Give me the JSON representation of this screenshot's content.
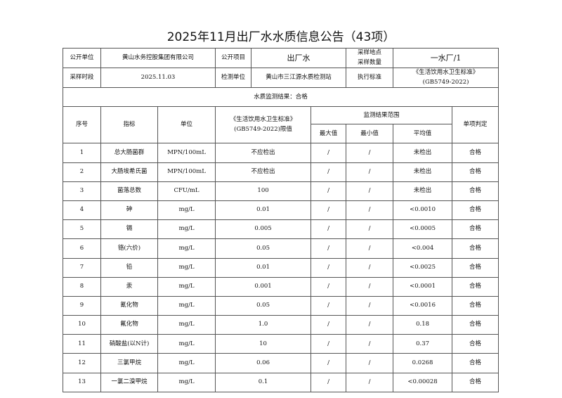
{
  "title": "2025年11月出厂水水质信息公告（43项）",
  "info": {
    "r1": [
      "公开单位",
      "黄山水务控股集团有限公司",
      "公开项目",
      "出厂水",
      "采样地点",
      "采样数量",
      "一水厂/1"
    ],
    "r2": [
      "采样时段",
      "2025.11.03",
      "检测单位",
      "黄山市三江源水质检测站",
      "执行标准",
      "《生活饮用水卫生标准》",
      "(GB5749-2022)"
    ],
    "result": "水质监测结果：合格"
  },
  "header": {
    "no": "序号",
    "index": "指标",
    "unit": "单位",
    "limit1": "《生活饮用水卫生标准》",
    "limit2": "(GB5749-2022)限值",
    "range": "监测结果范围",
    "max": "最大值",
    "min": "最小值",
    "avg": "平均值",
    "judge": "单项判定"
  },
  "rows": [
    [
      "1",
      "总大肠菌群",
      "MPN/100mL",
      "不应检出",
      "/",
      "/",
      "未检出",
      "合格"
    ],
    [
      "2",
      "大肠埃希氏菌",
      "MPN/100mL",
      "不应检出",
      "/",
      "/",
      "未检出",
      "合格"
    ],
    [
      "3",
      "菌落总数",
      "CFU/mL",
      "100",
      "/",
      "/",
      "未检出",
      "合格"
    ],
    [
      "4",
      "砷",
      "mg/L",
      "0.01",
      "/",
      "/",
      "<0.0010",
      "合格"
    ],
    [
      "5",
      "镉",
      "mg/L",
      "0.005",
      "/",
      "/",
      "<0.0005",
      "合格"
    ],
    [
      "6",
      "铬(六价)",
      "mg/L",
      "0.05",
      "/",
      "/",
      "<0.004",
      "合格"
    ],
    [
      "7",
      "铅",
      "mg/L",
      "0.01",
      "/",
      "/",
      "<0.0025",
      "合格"
    ],
    [
      "8",
      "汞",
      "mg/L",
      "0.001",
      "/",
      "/",
      "<0.0001",
      "合格"
    ],
    [
      "9",
      "氰化物",
      "mg/L",
      "0.05",
      "/",
      "/",
      "<0.0016",
      "合格"
    ],
    [
      "10",
      "氟化物",
      "mg/L",
      "1.0",
      "/",
      "/",
      "0.18",
      "合格"
    ],
    [
      "11",
      "硝酸盐(以N计)",
      "mg/L",
      "10",
      "/",
      "/",
      "0.37",
      "合格"
    ],
    [
      "12",
      "三氯甲烷",
      "mg/L",
      "0.06",
      "/",
      "/",
      "0.0268",
      "合格"
    ],
    [
      "13",
      "一氯二溴甲烷",
      "mg/L",
      "0.1",
      "/",
      "/",
      "<0.00028",
      "合格"
    ]
  ]
}
